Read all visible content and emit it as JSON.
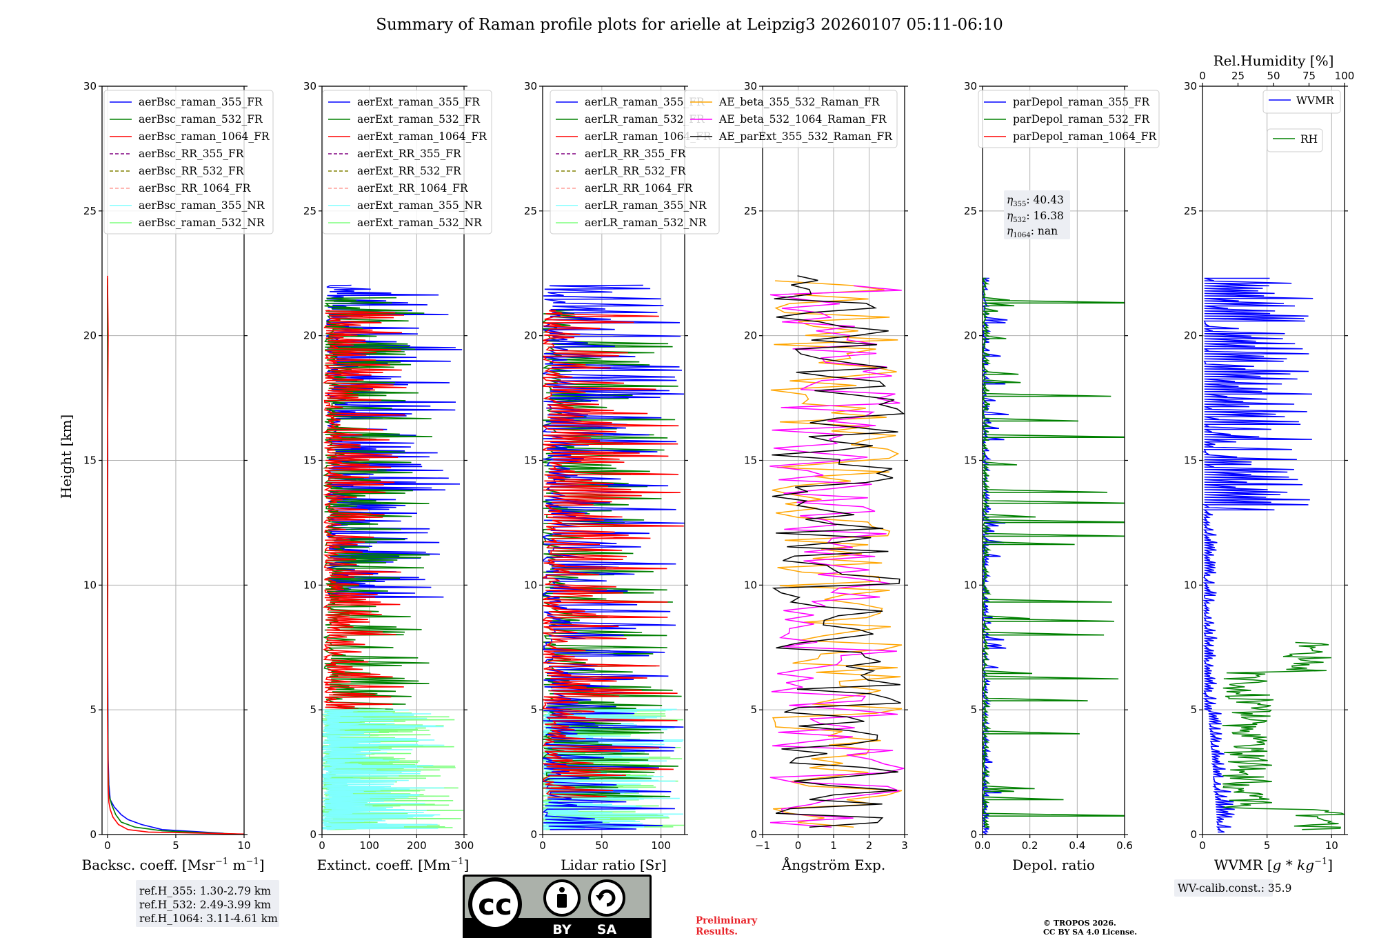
{
  "figure_title": "Summary of Raman profile plots for arielle at Leipzig3 20260107 05:11-06:10",
  "ylabel": "Height [km]",
  "annotations": {
    "ref_h": [
      "ref.H_355: 1.30-2.79 km",
      "ref.H_532: 2.49-3.99 km",
      "ref.H_1064: 3.11-4.61 km"
    ],
    "eta_prefix": [
      "η",
      "η",
      "η"
    ],
    "eta_sub": [
      "355",
      "532",
      "1064"
    ],
    "eta_val": [
      ": 40.43",
      ": 16.38",
      ": nan"
    ],
    "wv_calib": "WV-calib.const.: 35.9",
    "prelim": [
      "Preliminary",
      "Results."
    ],
    "copyright": [
      "© TROPOS 2026.",
      "CC BY SA 4.0 License."
    ],
    "cc_logo": {
      "text_cc": "cc",
      "text_by": "BY",
      "text_sa": "SA"
    }
  },
  "colors": {
    "blue": "#0000ff",
    "green": "#008000",
    "red": "#ff0000",
    "purple": "#800080",
    "olive": "#808000",
    "salmon": "#ff9f99",
    "cyan": "#7fffff",
    "lightgreen": "#7fff7f",
    "orange": "#ffa500",
    "magenta": "#ff00ff",
    "black": "#000000",
    "grid": "#b0b0b0"
  },
  "chart_data": [
    {
      "type": "line",
      "xlabel": "Backsc. coeff. [Msr$^{-1}$ m$^{-1}$]",
      "xlabel_main": "Backsc. coeff. [Msr",
      "xlabel_sup1": "−1",
      "xlabel_mid": " m",
      "xlabel_sup2": "−1",
      "xlabel_end": "]",
      "xlim": [
        -0.4,
        10
      ],
      "ylim": [
        0,
        30
      ],
      "xticks": [
        0,
        5,
        10
      ],
      "xticklabels": [
        "0",
        "5",
        "10"
      ],
      "yticks": [
        0,
        5,
        10,
        15,
        20,
        25,
        30
      ],
      "yticklabels": [
        "0",
        "5",
        "10",
        "15",
        "20",
        "25",
        "30"
      ],
      "legend_loc": "upper-right",
      "series": [
        {
          "name": "aerBsc_raman_355_FR",
          "color": "blue",
          "style": "solid",
          "x": [
            8.5,
            4.0,
            2.5,
            1.5,
            1.0,
            0.5,
            0.2,
            0.1,
            0.05,
            0.03,
            0.0,
            0.02,
            0.0
          ],
          "y": [
            0.05,
            0.2,
            0.4,
            0.6,
            0.8,
            1.1,
            1.4,
            2.0,
            3.0,
            5.0,
            10.0,
            15.0,
            22.0
          ]
        },
        {
          "name": "aerBsc_raman_532_FR",
          "color": "green",
          "style": "solid",
          "x": [
            9.5,
            4.0,
            2.0,
            1.0,
            0.6,
            0.3,
            0.1,
            0.05,
            0.02,
            0.0,
            0.01,
            0.0
          ],
          "y": [
            0.02,
            0.15,
            0.3,
            0.5,
            0.8,
            1.2,
            1.6,
            2.5,
            5.0,
            10.0,
            15.0,
            22.3
          ]
        },
        {
          "name": "aerBsc_raman_1064_FR",
          "color": "red",
          "style": "solid",
          "x": [
            10.0,
            3.0,
            1.5,
            0.8,
            0.4,
            0.2,
            0.1,
            0.05,
            0.0,
            0.02,
            0.0,
            0.05,
            0.0
          ],
          "y": [
            0.02,
            0.1,
            0.2,
            0.4,
            0.7,
            1.0,
            1.3,
            2.0,
            5.0,
            10.0,
            15.0,
            20.0,
            22.4
          ]
        },
        {
          "name": "aerBsc_RR_355_FR",
          "color": "purple",
          "style": "dash",
          "x": [],
          "y": []
        },
        {
          "name": "aerBsc_RR_532_FR",
          "color": "olive",
          "style": "dash",
          "x": [],
          "y": []
        },
        {
          "name": "aerBsc_RR_1064_FR",
          "color": "salmon",
          "style": "dash",
          "x": [],
          "y": []
        },
        {
          "name": "aerBsc_raman_355_NR",
          "color": "cyan",
          "style": "solid",
          "x": [],
          "y": []
        },
        {
          "name": "aerBsc_raman_532_NR",
          "color": "lightgreen",
          "style": "solid",
          "x": [],
          "y": []
        }
      ]
    },
    {
      "type": "line",
      "xlabel": "Extinct. coeff. [Mm$^{-1}$]",
      "xlabel_main": "Extinct. coeff. [Mm",
      "xlabel_sup1": "−1",
      "xlabel_mid": "",
      "xlabel_sup2": "",
      "xlabel_end": "]",
      "xlim": [
        0,
        300
      ],
      "ylim": [
        0,
        30
      ],
      "xticks": [
        0,
        100,
        200,
        300
      ],
      "xticklabels": [
        "0",
        "100",
        "200",
        "300"
      ],
      "yticks": [
        0,
        5,
        10,
        15,
        20,
        25,
        30
      ],
      "yticklabels": [
        "0",
        "5",
        "10",
        "15",
        "20",
        "25",
        "30"
      ],
      "legend_loc": "upper-right",
      "series": [
        {
          "name": "aerExt_raman_355_FR",
          "color": "blue",
          "style": "solid",
          "x": [],
          "y": []
        },
        {
          "name": "aerExt_raman_532_FR",
          "color": "green",
          "style": "solid",
          "x": [],
          "y": []
        },
        {
          "name": "aerExt_raman_1064_FR",
          "color": "red",
          "style": "solid",
          "x": [],
          "y": []
        },
        {
          "name": "aerExt_RR_355_FR",
          "color": "purple",
          "style": "dash",
          "x": [],
          "y": []
        },
        {
          "name": "aerExt_RR_532_FR",
          "color": "olive",
          "style": "dash",
          "x": [],
          "y": []
        },
        {
          "name": "aerExt_RR_1064_FR",
          "color": "salmon",
          "style": "dash",
          "x": [],
          "y": []
        },
        {
          "name": "aerExt_raman_355_NR",
          "color": "cyan",
          "style": "solid",
          "x": [],
          "y": []
        },
        {
          "name": "aerExt_raman_532_NR",
          "color": "lightgreen",
          "style": "solid",
          "x": [],
          "y": []
        }
      ],
      "noise_bands": [
        {
          "color": "blue",
          "y0": 9.5,
          "y1": 22.0,
          "x0": 10,
          "x1": 300,
          "seed": 11
        },
        {
          "color": "green",
          "y0": 5.0,
          "y1": 21.5,
          "x0": 5,
          "x1": 240,
          "seed": 12
        },
        {
          "color": "red",
          "y0": 5.0,
          "y1": 21.0,
          "x0": 5,
          "x1": 180,
          "seed": 13
        },
        {
          "color": "lightgreen",
          "y0": 0.2,
          "y1": 5.0,
          "x0": 0,
          "x1": 300,
          "seed": 14
        },
        {
          "color": "cyan",
          "y0": 0.2,
          "y1": 5.0,
          "x0": 0,
          "x1": 260,
          "seed": 15
        }
      ]
    },
    {
      "type": "line",
      "xlabel": "Lidar ratio [Sr]",
      "xlabel_main": "Lidar ratio [Sr]",
      "xlabel_sup1": "",
      "xlabel_mid": "",
      "xlabel_sup2": "",
      "xlabel_end": "",
      "xlim": [
        0,
        120
      ],
      "ylim": [
        0,
        30
      ],
      "xticks": [
        0,
        50,
        100
      ],
      "xticklabels": [
        "0",
        "50",
        "100"
      ],
      "yticks": [
        0,
        5,
        10,
        15,
        20,
        25,
        30
      ],
      "yticklabels": [
        "0",
        "5",
        "10",
        "15",
        "20",
        "25",
        "30"
      ],
      "legend_loc": "upper-right",
      "series": [
        {
          "name": "aerLR_raman_355_FR",
          "color": "blue",
          "style": "solid",
          "x": [],
          "y": []
        },
        {
          "name": "aerLR_raman_532_FR",
          "color": "green",
          "style": "solid",
          "x": [],
          "y": []
        },
        {
          "name": "aerLR_raman_1064_FR",
          "color": "red",
          "style": "solid",
          "x": [],
          "y": []
        },
        {
          "name": "aerLR_RR_355_FR",
          "color": "purple",
          "style": "dash",
          "x": [],
          "y": []
        },
        {
          "name": "aerLR_RR_532_FR",
          "color": "olive",
          "style": "dash",
          "x": [],
          "y": []
        },
        {
          "name": "aerLR_RR_1064_FR",
          "color": "salmon",
          "style": "dash",
          "x": [],
          "y": []
        },
        {
          "name": "aerLR_raman_355_NR",
          "color": "cyan",
          "style": "solid",
          "x": [],
          "y": []
        },
        {
          "name": "aerLR_raman_532_NR",
          "color": "lightgreen",
          "style": "solid",
          "x": [],
          "y": []
        }
      ],
      "noise_bands": [
        {
          "color": "lightgreen",
          "y0": 0.2,
          "y1": 5.0,
          "x0": 0,
          "x1": 120,
          "seed": 21
        },
        {
          "color": "cyan",
          "y0": 0.2,
          "y1": 5.0,
          "x0": 0,
          "x1": 120,
          "seed": 22
        },
        {
          "color": "green",
          "y0": 1.5,
          "y1": 21.0,
          "x0": 0,
          "x1": 120,
          "seed": 23
        },
        {
          "color": "blue",
          "y0": 0.2,
          "y1": 22.0,
          "x0": 0,
          "x1": 120,
          "seed": 24
        },
        {
          "color": "red",
          "y0": 1.5,
          "y1": 21.0,
          "x0": 0,
          "x1": 120,
          "seed": 25
        }
      ]
    },
    {
      "type": "line",
      "xlabel": "Ångström Exp.",
      "xlabel_main": "Ångström Exp.",
      "xlabel_sup1": "",
      "xlabel_mid": "",
      "xlabel_sup2": "",
      "xlabel_end": "",
      "xlim": [
        -1,
        3
      ],
      "ylim": [
        0,
        30
      ],
      "xticks": [
        -1,
        0,
        1,
        2,
        3
      ],
      "xticklabels": [
        "−1",
        "0",
        "1",
        "2",
        "3"
      ],
      "yticks": [
        0,
        5,
        10,
        15,
        20,
        25,
        30
      ],
      "yticklabels": [
        "0",
        "5",
        "10",
        "15",
        "20",
        "25",
        "30"
      ],
      "legend_loc": "upper-right",
      "series": [
        {
          "name": "AE_beta_355_532_Raman_FR",
          "color": "orange",
          "style": "solid",
          "x": [],
          "y": []
        },
        {
          "name": "AE_beta_532_1064_Raman_FR",
          "color": "magenta",
          "style": "solid",
          "x": [],
          "y": []
        },
        {
          "name": "AE_parExt_355_532_Raman_FR",
          "color": "black",
          "style": "solid",
          "x": [],
          "y": []
        }
      ]
    },
    {
      "type": "line",
      "xlabel": "Depol. ratio",
      "xlabel_main": "Depol. ratio",
      "xlabel_sup1": "",
      "xlabel_mid": "",
      "xlabel_sup2": "",
      "xlabel_end": "",
      "xlim": [
        0,
        0.6
      ],
      "ylim": [
        0,
        30
      ],
      "xticks": [
        0,
        0.2,
        0.4,
        0.6
      ],
      "xticklabels": [
        "0.0",
        "0.2",
        "0.4",
        "0.6"
      ],
      "yticks": [
        0,
        5,
        10,
        15,
        20,
        25,
        30
      ],
      "yticklabels": [
        "0",
        "5",
        "10",
        "15",
        "20",
        "25",
        "30"
      ],
      "legend_loc": "upper-right",
      "series": [
        {
          "name": "parDepol_raman_355_FR",
          "color": "blue",
          "style": "solid",
          "x": [],
          "y": []
        },
        {
          "name": "parDepol_raman_532_FR",
          "color": "green",
          "style": "solid",
          "x": [],
          "y": []
        },
        {
          "name": "parDepol_raman_1064_FR",
          "color": "red",
          "style": "solid",
          "x": [],
          "y": []
        }
      ]
    },
    {
      "type": "line",
      "xlabel": "WVMR [$g*kg^{-1}$]",
      "xlabel_main": "WVMR [",
      "xlabel_italic": "g * kg",
      "xlabel_sup1": "−1",
      "xlabel_mid": "",
      "xlabel_sup2": "",
      "xlabel_end": "]",
      "top_xlabel": "Rel.Humidity [%]",
      "xlim": [
        0,
        11
      ],
      "ylim": [
        0,
        30
      ],
      "top_xlim": [
        0,
        100
      ],
      "xticks": [
        0,
        5,
        10
      ],
      "xticklabels": [
        "0",
        "5",
        "10"
      ],
      "top_xticks": [
        0,
        25,
        50,
        75,
        100
      ],
      "top_xticklabels": [
        "0",
        "25",
        "50",
        "75",
        "100"
      ],
      "yticks": [
        0,
        5,
        10,
        15,
        20,
        25,
        30
      ],
      "yticklabels": [
        "0",
        "5",
        "10",
        "15",
        "20",
        "25",
        "30"
      ],
      "series": [
        {
          "name": "WVMR",
          "color": "blue",
          "style": "solid",
          "x": [],
          "y": []
        },
        {
          "name": "RH",
          "color": "green",
          "style": "solid",
          "x": [],
          "y": []
        }
      ]
    }
  ]
}
